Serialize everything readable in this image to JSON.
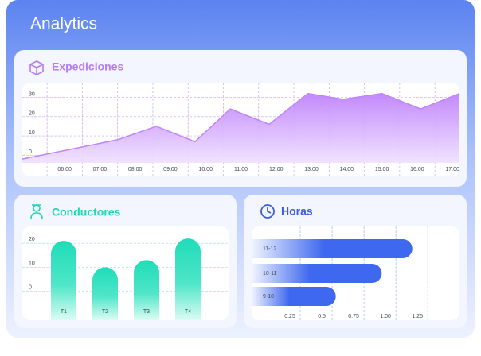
{
  "header": {
    "title": "Analytics"
  },
  "chart_data": [
    {
      "type": "area",
      "title": "Expediciones",
      "color": "#c084fc",
      "x": [
        4.8,
        7.5,
        8.6,
        9.7,
        10.7,
        11.8,
        12.9,
        13.9,
        15.0,
        16.1,
        17.2
      ],
      "values": [
        -2,
        8,
        15,
        7,
        24,
        16,
        32,
        29,
        32,
        24,
        32
      ],
      "xlim": [
        4.8,
        17.2
      ],
      "ylim": [
        -4,
        36
      ],
      "yticks": [
        0,
        10,
        20,
        30
      ],
      "xticks": [
        {
          "value": 6,
          "label": "06:00"
        },
        {
          "value": 7,
          "label": "07:00"
        },
        {
          "value": 8,
          "label": "08:00"
        },
        {
          "value": 9,
          "label": "09:00"
        },
        {
          "value": 10,
          "label": "10:00"
        },
        {
          "value": 11,
          "label": "11:00"
        },
        {
          "value": 12,
          "label": "12:00"
        },
        {
          "value": 13,
          "label": "13:00"
        },
        {
          "value": 14,
          "label": "14:00"
        },
        {
          "value": 15,
          "label": "15:00"
        },
        {
          "value": 16,
          "label": "16:00"
        },
        {
          "value": 17,
          "label": "17:00"
        }
      ],
      "grid": true
    },
    {
      "type": "bar",
      "title": "Conductores",
      "color": "#1fdcb8",
      "categories": [
        "T1",
        "T2",
        "T3",
        "T4"
      ],
      "values": [
        21,
        10,
        13,
        22
      ],
      "ylim": [
        -12,
        27
      ],
      "yticks": [
        0,
        10,
        20
      ],
      "grid": true
    },
    {
      "type": "hbar",
      "title": "Horas",
      "color": "#3e68ef",
      "categories": [
        "11-12",
        "10-11",
        "9-10"
      ],
      "values": [
        1.21,
        0.97,
        0.61
      ],
      "xlim": [
        -0.05,
        1.58
      ],
      "xticks": [
        0.25,
        0.5,
        0.75,
        {
          "value": 1,
          "label": "1.00"
        },
        1.25
      ],
      "grid": true
    }
  ]
}
